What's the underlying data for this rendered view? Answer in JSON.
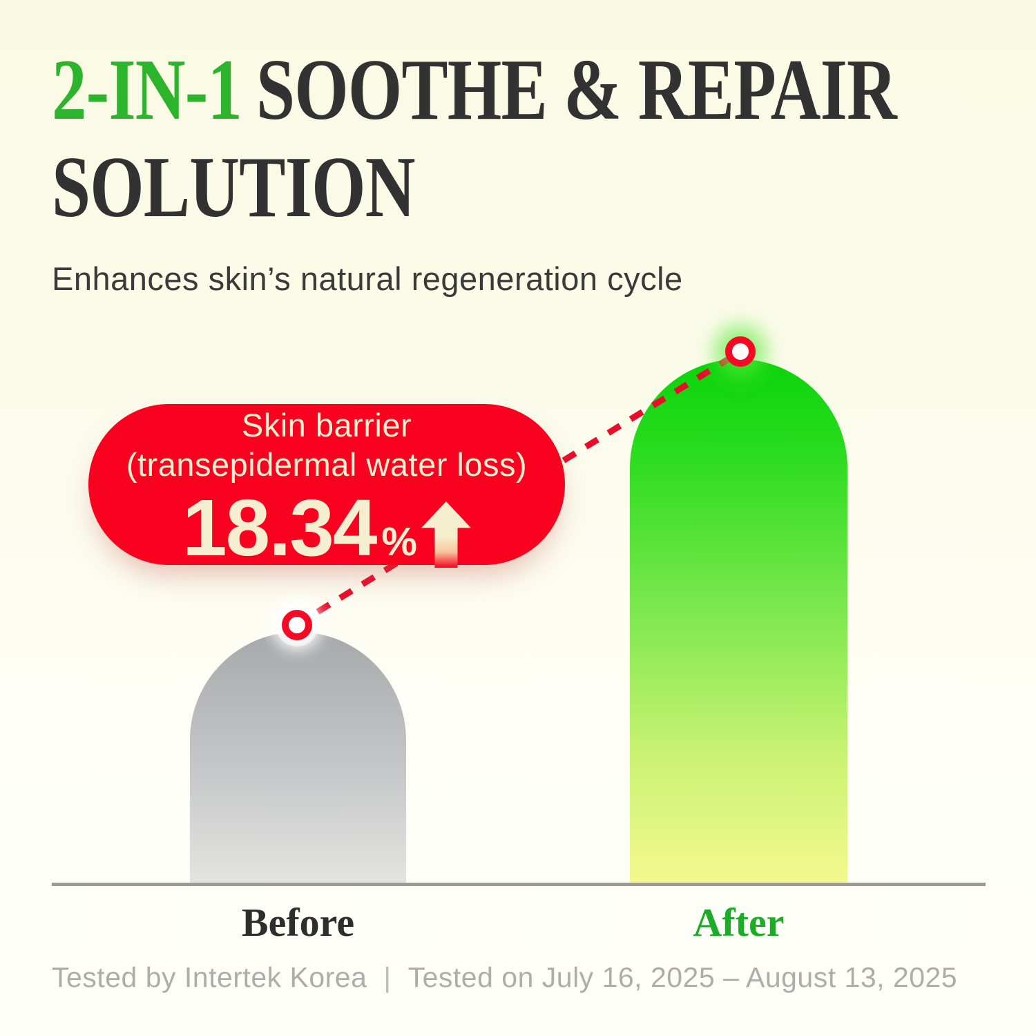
{
  "colors": {
    "background_top": "#FAFAE4",
    "background_bottom": "#FFFFF9",
    "title_highlight_green": "#2CB42C",
    "title_dark": "#323232",
    "badge_red": "#F80220",
    "badge_text_cream": "#F6EFCF",
    "bar_before_gray_top": "#A6A9AB",
    "bar_after_green_top": "#0BD30B",
    "bar_after_yellow_bottom": "#F4F98D",
    "after_label_green": "#1CAC27",
    "footer_gray": "#ADADA9"
  },
  "header": {
    "title_highlight": "2-IN-1",
    "title_rest": "SOOTHE & REPAIR",
    "title_line2": "SOLUTION",
    "subtitle": "Enhances skin’s natural regeneration cycle"
  },
  "callout": {
    "label_line1": "Skin barrier",
    "label_line2": "(transepidermal water loss)",
    "value": "18.34",
    "unit": "%",
    "direction_icon": "up-arrow"
  },
  "chart_data": {
    "type": "bar",
    "categories": [
      "Before",
      "After"
    ],
    "series": [
      {
        "name": "Skin barrier (transepidermal water loss)",
        "relative_heights_pct": [
          48,
          100
        ]
      }
    ],
    "annotation": {
      "text": "Skin barrier (transepidermal water loss) 18.34% up",
      "value_pct": 18.34,
      "direction": "up"
    },
    "title": "2-IN-1 SOOTHE & REPAIR SOLUTION",
    "xlabel": "",
    "ylabel": "",
    "axis_ticks": "none",
    "grid": false,
    "legend": "none",
    "baseline_shown": true
  },
  "category_labels": {
    "before": "Before",
    "after": "After"
  },
  "footer": {
    "left": "Tested by Intertek Korea",
    "separator": "|",
    "right": "Tested on July 16, 2025 – August 13, 2025"
  }
}
